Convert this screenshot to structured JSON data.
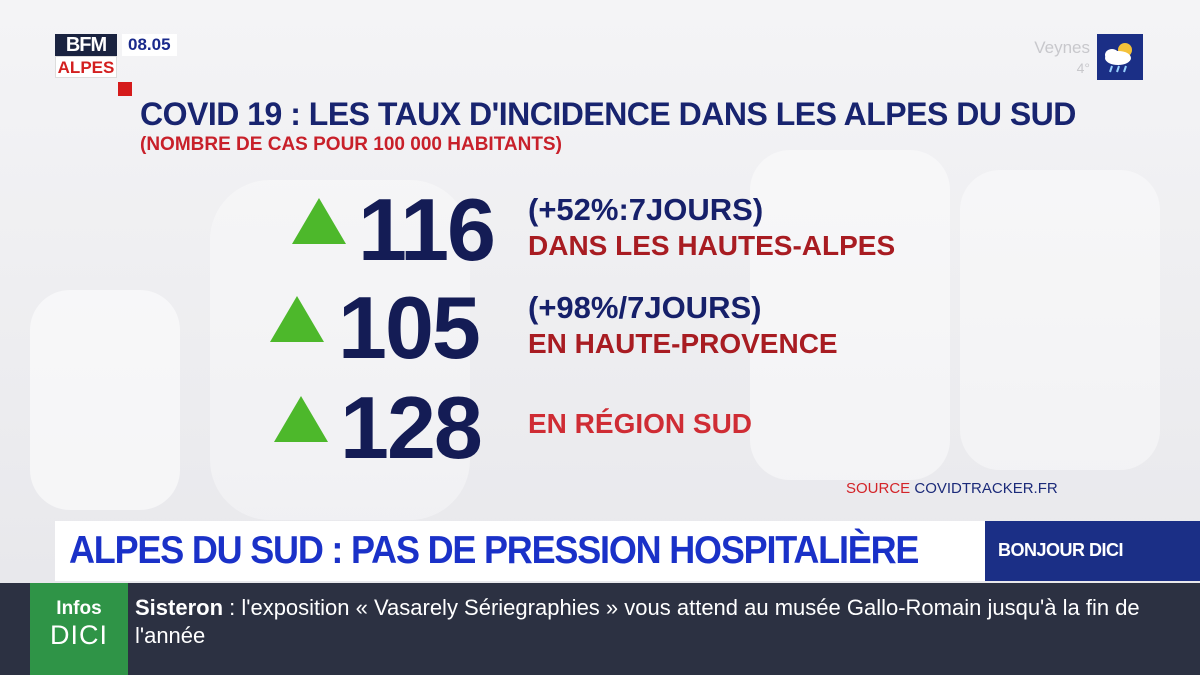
{
  "logo": {
    "top": "BFM",
    "bottom": "ALPES"
  },
  "clock": "08.05",
  "weather": {
    "city": "Veynes",
    "temp": "4°",
    "icon": "cloud-sun-rain-icon"
  },
  "headline": {
    "title": "COVID 19 : LES TAUX D'INCIDENCE DANS LES ALPES DU SUD",
    "subtitle": "(NOMBRE DE CAS POUR 100 000 HABITANTS)"
  },
  "stats": [
    {
      "value": "116",
      "change": "(+52%:7JOURS)",
      "place": "DANS LES HAUTES-ALPES",
      "trend_icon": "up-triangle-icon"
    },
    {
      "value": "105",
      "change": "(+98%/7JOURS)",
      "place": "EN HAUTE-PROVENCE",
      "trend_icon": "up-triangle-icon"
    },
    {
      "value": "128",
      "change": "",
      "place": "EN RÉGION SUD",
      "trend_icon": "up-triangle-icon"
    }
  ],
  "source": {
    "label": "SOURCE",
    "site": "COVIDTRACKER.FR"
  },
  "banner": {
    "text": "ALPES DU SUD : PAS DE PRESSION HOSPITALIÈRE",
    "show": "BONJOUR DICI"
  },
  "ticker": {
    "brand_top": "Infos",
    "brand_bottom": "DICI",
    "location": "Sisteron",
    "separator": " : ",
    "text": "l'exposition « Vasarely Sériegraphies » vous attend au musée Gallo-Romain jusqu'à la fin de l'année"
  },
  "colors": {
    "title_blue": "#18246f",
    "accent_red": "#c8202a",
    "trend_green": "#4db82b",
    "banner_blue": "#1a31c8",
    "badge_blue": "#1b2f86",
    "ticker_green": "#2f9447",
    "ticker_bg": "#2c3142"
  }
}
